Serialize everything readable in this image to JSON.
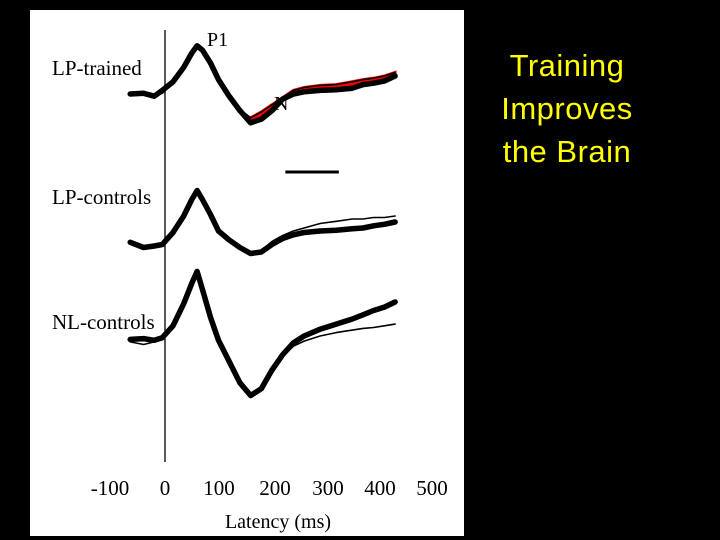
{
  "slide": {
    "title_lines": [
      "Training",
      "Improves",
      "the Brain"
    ],
    "title_color": "#ffff00",
    "background": "#000000"
  },
  "chart_data": {
    "type": "line",
    "xlabel": "Latency (ms)",
    "x_ticks": [
      "-100",
      "0",
      "100",
      "200",
      "300",
      "400",
      "500"
    ],
    "xlim": [
      -150,
      500
    ],
    "grid": false,
    "peak_labels": [
      {
        "panel": "LP-trained",
        "label": "P1",
        "latency": 60
      },
      {
        "panel": "LP-trained",
        "label": "N",
        "latency": 160
      }
    ],
    "highlight": {
      "panel": "LP-trained",
      "color": "#ff0000",
      "from": 155,
      "to": 370,
      "note": "red shading between pre and post traces; horizontal bar under N"
    },
    "panels": [
      {
        "name": "LP-trained",
        "series": [
          {
            "style": "thick",
            "x": [
              -65,
              -40,
              -20,
              -5,
              15,
              35,
              50,
              60,
              70,
              85,
              100,
              120,
              140,
              160,
              180,
              200,
              220,
              240,
              260,
              290,
              320,
              350,
              370,
              390,
              410,
              430
            ],
            "y": [
              0.25,
              0.26,
              0.22,
              0.3,
              0.42,
              0.62,
              0.82,
              0.92,
              0.86,
              0.68,
              0.45,
              0.22,
              0.02,
              -0.15,
              -0.1,
              0.02,
              0.18,
              0.25,
              0.28,
              0.3,
              0.31,
              0.33,
              0.38,
              0.4,
              0.43,
              0.5
            ]
          },
          {
            "style": "thin",
            "x": [
              -65,
              -40,
              -20,
              -5,
              15,
              35,
              50,
              60,
              70,
              85,
              100,
              120,
              140,
              160,
              180,
              200,
              220,
              240,
              260,
              290,
              320,
              350,
              370,
              390,
              410,
              430
            ],
            "y": [
              0.25,
              0.24,
              0.22,
              0.26,
              0.4,
              0.63,
              0.84,
              0.93,
              0.86,
              0.66,
              0.44,
              0.22,
              0.04,
              -0.08,
              0.0,
              0.1,
              0.2,
              0.3,
              0.34,
              0.37,
              0.38,
              0.42,
              0.45,
              0.47,
              0.5,
              0.55
            ]
          }
        ]
      },
      {
        "name": "LP-controls",
        "series": [
          {
            "style": "thick",
            "x": [
              -65,
              -40,
              -20,
              -5,
              15,
              35,
              50,
              60,
              70,
              85,
              100,
              120,
              140,
              160,
              180,
              200,
              220,
              240,
              260,
              290,
              320,
              350,
              370,
              390,
              410,
              430
            ],
            "y": [
              0.05,
              -0.02,
              0.0,
              0.02,
              0.18,
              0.4,
              0.62,
              0.74,
              0.62,
              0.42,
              0.2,
              0.08,
              -0.02,
              -0.1,
              -0.08,
              0.02,
              0.1,
              0.15,
              0.18,
              0.2,
              0.21,
              0.23,
              0.24,
              0.27,
              0.29,
              0.32
            ]
          },
          {
            "style": "thin",
            "x": [
              -65,
              -40,
              -20,
              -5,
              15,
              35,
              50,
              60,
              70,
              85,
              100,
              120,
              140,
              160,
              180,
              200,
              220,
              240,
              260,
              290,
              320,
              350,
              370,
              390,
              410,
              430
            ],
            "y": [
              0.04,
              0.0,
              0.02,
              0.04,
              0.2,
              0.42,
              0.62,
              0.72,
              0.6,
              0.4,
              0.2,
              0.06,
              -0.04,
              -0.12,
              -0.06,
              0.06,
              0.14,
              0.2,
              0.24,
              0.3,
              0.33,
              0.36,
              0.36,
              0.38,
              0.38,
              0.4
            ]
          }
        ]
      },
      {
        "name": "NL-controls",
        "series": [
          {
            "style": "thick",
            "x": [
              -65,
              -40,
              -20,
              -5,
              15,
              35,
              50,
              60,
              70,
              85,
              100,
              120,
              140,
              160,
              180,
              200,
              220,
              240,
              260,
              290,
              320,
              350,
              370,
              390,
              410,
              430
            ],
            "y": [
              0.36,
              0.37,
              0.35,
              0.38,
              0.52,
              0.78,
              1.02,
              1.16,
              0.95,
              0.62,
              0.35,
              0.1,
              -0.15,
              -0.3,
              -0.22,
              0.0,
              0.18,
              0.32,
              0.4,
              0.48,
              0.54,
              0.6,
              0.65,
              0.7,
              0.74,
              0.8
            ]
          },
          {
            "style": "thin",
            "x": [
              -65,
              -40,
              -20,
              -5,
              15,
              35,
              50,
              60,
              70,
              85,
              100,
              120,
              140,
              160,
              180,
              200,
              220,
              240,
              260,
              290,
              320,
              350,
              370,
              390,
              410,
              430
            ],
            "y": [
              0.33,
              0.3,
              0.33,
              0.36,
              0.5,
              0.78,
              1.0,
              1.12,
              0.94,
              0.62,
              0.35,
              0.1,
              -0.14,
              -0.28,
              -0.2,
              0.0,
              0.16,
              0.28,
              0.34,
              0.4,
              0.44,
              0.47,
              0.49,
              0.5,
              0.52,
              0.54
            ]
          }
        ]
      }
    ]
  }
}
